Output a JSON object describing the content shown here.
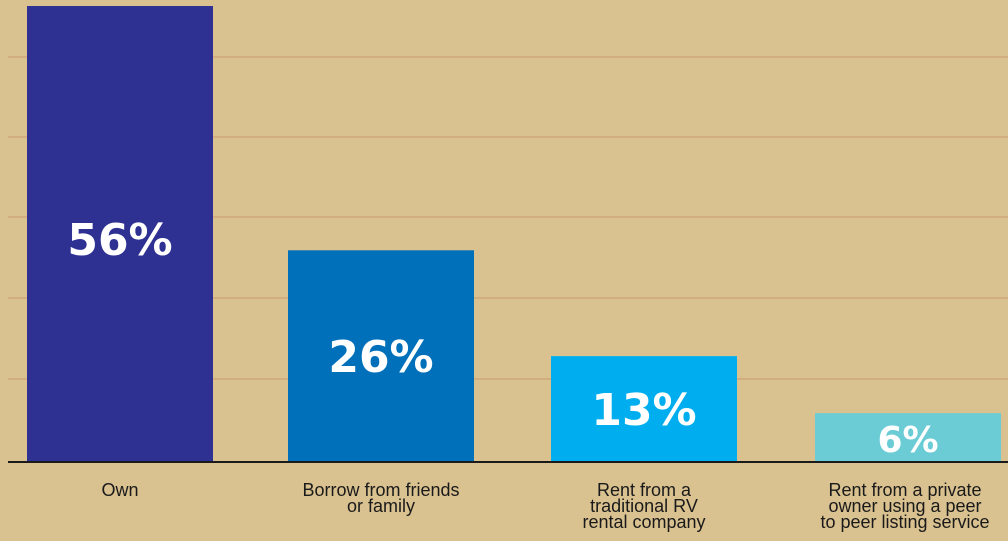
{
  "chart_data": {
    "type": "bar",
    "categories": [
      [
        "Own"
      ],
      [
        "Borrow from friends",
        "or family"
      ],
      [
        "Rent from a",
        "traditional RV",
        "rental company"
      ],
      [
        "Rent from a private",
        "owner using a peer",
        "to peer listing service"
      ]
    ],
    "values": [
      56,
      26,
      13,
      6
    ],
    "value_labels": [
      "56%",
      "26%",
      "13%",
      "6%"
    ],
    "colors": [
      "#2e3192",
      "#0070ba",
      "#00aeef",
      "#6cccd5"
    ],
    "ylim": [
      0,
      56
    ],
    "grid": true
  }
}
